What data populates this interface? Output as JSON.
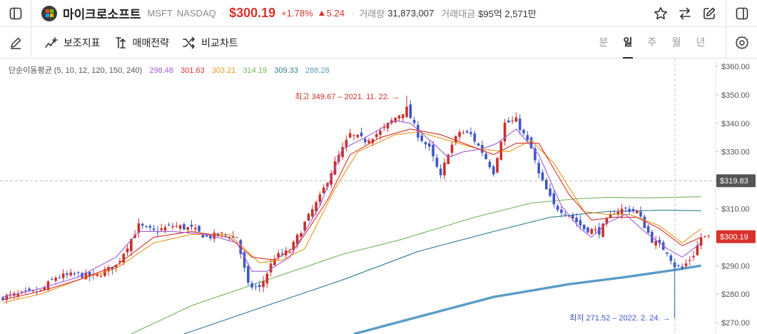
{
  "header": {
    "stock_name": "마이크로소프트",
    "ticker": "MSFT",
    "exchange": "NASDAQ",
    "price": "$300.19",
    "change_pct": "+1.78%",
    "change_abs": "5.24",
    "volume_label": "거래량",
    "volume_value": "31,873,007",
    "turnover_label": "거래대금",
    "turnover_value": "$95억 2,571만",
    "icons": [
      "sidebar-icon",
      "star-icon",
      "swap-icon",
      "edit-icon",
      "sidebar-icon"
    ]
  },
  "toolbar": {
    "indicator_label": "보조지표",
    "strategy_label": "매매전략",
    "compare_label": "비교차트",
    "periods": [
      "분",
      "일",
      "주",
      "월",
      "년"
    ],
    "active_period": "일"
  },
  "chart_data": {
    "type": "candlestick",
    "legend": {
      "label": "단순이동평균 (5, 10, 12, 120, 150, 240)",
      "values": [
        {
          "value": "298.48",
          "color": "#a35cd6"
        },
        {
          "value": "301.63",
          "color": "#d9322b"
        },
        {
          "value": "303.21",
          "color": "#e8961e"
        },
        {
          "value": "314.19",
          "color": "#72b45a"
        },
        {
          "value": "309.33",
          "color": "#2f7d93"
        },
        {
          "value": "288.28",
          "color": "#5a9cc7"
        }
      ]
    },
    "y_ticks": [
      "$360.00",
      "$350.00",
      "$340.00",
      "$330.00",
      "$320.00",
      "$310.00",
      "$300.00",
      "$290.00",
      "$280.00",
      "$270.00"
    ],
    "y_tick_values": [
      360,
      350,
      340,
      330,
      320,
      310,
      300,
      290,
      280,
      270
    ],
    "ylim": [
      265.5,
      361.5
    ],
    "crosshair_price": "$319.83",
    "crosshair_value": 319.83,
    "current_price_label": "$300.19",
    "current_price_value": 300.19,
    "high_annotation": "최고 349.67 – 2021. 11. 22.",
    "high_value": 349.67,
    "high_index": 107,
    "low_annotation": "최저 271.52 – 2022. 2. 24.",
    "low_value": 271.52,
    "low_index": 178,
    "colors": {
      "up": "#c8312a",
      "down": "#3f57c9",
      "ma5": "#a35cd6",
      "ma10": "#d9322b",
      "ma12": "#e8961e",
      "ma120": "#72b45a",
      "ma150": "#2f7d93",
      "ma240": "#5a9cc7"
    },
    "anchors": {
      "close": [
        [
          0,
          279
        ],
        [
          5,
          280
        ],
        [
          10,
          281
        ],
        [
          14,
          286
        ],
        [
          20,
          287
        ],
        [
          24,
          286
        ],
        [
          30,
          290
        ],
        [
          36,
          304
        ],
        [
          40,
          302
        ],
        [
          45,
          304
        ],
        [
          50,
          303
        ],
        [
          54,
          300
        ],
        [
          58,
          301
        ],
        [
          62,
          300
        ],
        [
          65,
          283
        ],
        [
          68,
          282
        ],
        [
          72,
          293
        ],
        [
          76,
          295
        ],
        [
          80,
          305
        ],
        [
          84,
          314
        ],
        [
          88,
          326
        ],
        [
          92,
          336
        ],
        [
          96,
          334
        ],
        [
          100,
          337
        ],
        [
          104,
          342
        ],
        [
          107,
          345
        ],
        [
          110,
          336
        ],
        [
          113,
          331
        ],
        [
          116,
          321
        ],
        [
          118,
          330
        ],
        [
          121,
          337
        ],
        [
          124,
          336
        ],
        [
          127,
          330
        ],
        [
          130,
          323
        ],
        [
          133,
          340
        ],
        [
          136,
          341
        ],
        [
          140,
          331
        ],
        [
          142,
          322
        ],
        [
          146,
          311
        ],
        [
          150,
          308
        ],
        [
          154,
          303
        ],
        [
          158,
          302
        ],
        [
          162,
          309
        ],
        [
          165,
          310
        ],
        [
          168,
          309
        ],
        [
          172,
          299
        ],
        [
          176,
          295
        ],
        [
          178,
          290
        ],
        [
          180,
          289
        ],
        [
          183,
          294
        ],
        [
          185,
          300
        ]
      ],
      "ma5": [
        [
          0,
          279
        ],
        [
          10,
          282
        ],
        [
          20,
          286
        ],
        [
          30,
          293
        ],
        [
          36,
          302
        ],
        [
          45,
          302
        ],
        [
          54,
          301
        ],
        [
          62,
          298
        ],
        [
          66,
          288
        ],
        [
          70,
          288
        ],
        [
          76,
          293
        ],
        [
          84,
          311
        ],
        [
          90,
          331
        ],
        [
          96,
          335
        ],
        [
          104,
          341
        ],
        [
          108,
          340
        ],
        [
          114,
          333
        ],
        [
          118,
          328
        ],
        [
          122,
          330
        ],
        [
          127,
          331
        ],
        [
          131,
          333
        ],
        [
          136,
          338
        ],
        [
          142,
          329
        ],
        [
          148,
          311
        ],
        [
          153,
          303
        ],
        [
          156,
          300
        ],
        [
          160,
          305
        ],
        [
          165,
          308
        ],
        [
          170,
          302
        ],
        [
          176,
          296
        ],
        [
          180,
          293
        ],
        [
          185,
          298
        ]
      ],
      "ma10": [
        [
          0,
          278
        ],
        [
          10,
          281
        ],
        [
          20,
          285
        ],
        [
          30,
          290
        ],
        [
          40,
          300
        ],
        [
          50,
          302
        ],
        [
          60,
          300
        ],
        [
          66,
          293
        ],
        [
          72,
          292
        ],
        [
          78,
          297
        ],
        [
          86,
          313
        ],
        [
          92,
          329
        ],
        [
          100,
          335
        ],
        [
          108,
          338
        ],
        [
          116,
          336
        ],
        [
          124,
          332
        ],
        [
          130,
          329
        ],
        [
          136,
          333
        ],
        [
          142,
          333
        ],
        [
          150,
          315
        ],
        [
          156,
          306
        ],
        [
          162,
          307
        ],
        [
          168,
          307
        ],
        [
          174,
          303
        ],
        [
          180,
          297
        ],
        [
          185,
          300
        ]
      ],
      "ma12": [
        [
          0,
          277
        ],
        [
          10,
          280
        ],
        [
          20,
          285
        ],
        [
          30,
          289
        ],
        [
          40,
          298
        ],
        [
          50,
          301
        ],
        [
          60,
          301
        ],
        [
          68,
          291
        ],
        [
          74,
          292
        ],
        [
          80,
          296
        ],
        [
          88,
          317
        ],
        [
          94,
          330
        ],
        [
          104,
          336
        ],
        [
          110,
          337
        ],
        [
          118,
          334
        ],
        [
          126,
          331
        ],
        [
          134,
          330
        ],
        [
          140,
          334
        ],
        [
          146,
          326
        ],
        [
          154,
          309
        ],
        [
          160,
          308
        ],
        [
          166,
          308
        ],
        [
          174,
          304
        ],
        [
          180,
          298
        ],
        [
          185,
          303
        ]
      ],
      "ma120": [
        [
          34,
          266
        ],
        [
          50,
          276
        ],
        [
          70,
          285
        ],
        [
          90,
          294
        ],
        [
          105,
          299
        ],
        [
          125,
          307
        ],
        [
          140,
          312
        ],
        [
          152,
          313.5
        ],
        [
          160,
          314
        ],
        [
          170,
          313.8
        ],
        [
          185,
          314.2
        ]
      ],
      "ma150": [
        [
          48,
          266
        ],
        [
          70,
          276
        ],
        [
          90,
          285
        ],
        [
          110,
          295
        ],
        [
          130,
          302
        ],
        [
          145,
          307
        ],
        [
          160,
          309
        ],
        [
          175,
          309.5
        ],
        [
          185,
          309.3
        ]
      ],
      "ma240": [
        [
          93,
          266
        ],
        [
          110,
          272
        ],
        [
          130,
          279
        ],
        [
          150,
          283.5
        ],
        [
          165,
          286
        ],
        [
          178,
          288.5
        ],
        [
          185,
          290
        ]
      ]
    }
  }
}
